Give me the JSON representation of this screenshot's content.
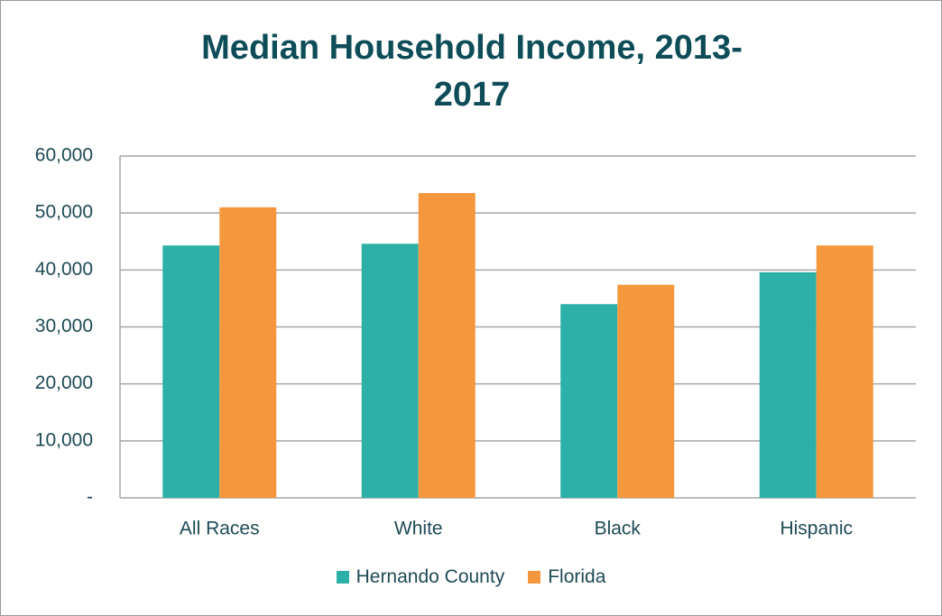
{
  "chart_data": {
    "type": "bar",
    "title": "Median Household Income, 2013-2017",
    "categories": [
      "All Races",
      "White",
      "Black",
      "Hispanic"
    ],
    "series": [
      {
        "name": "Hernando County",
        "color": "#2db0a7",
        "values": [
          44300,
          44600,
          34000,
          39600
        ]
      },
      {
        "name": "Florida",
        "color": "#f5983d",
        "values": [
          51000,
          53500,
          37400,
          44300
        ]
      }
    ],
    "ylim": [
      0,
      60000
    ],
    "yticks": [
      {
        "value": 0,
        "label": "-"
      },
      {
        "value": 10000,
        "label": "10,000"
      },
      {
        "value": 20000,
        "label": "20,000"
      },
      {
        "value": 30000,
        "label": "30,000"
      },
      {
        "value": 40000,
        "label": "40,000"
      },
      {
        "value": 50000,
        "label": "50,000"
      },
      {
        "value": 60000,
        "label": "60,000"
      }
    ],
    "grid": true,
    "legend": "bottom"
  }
}
